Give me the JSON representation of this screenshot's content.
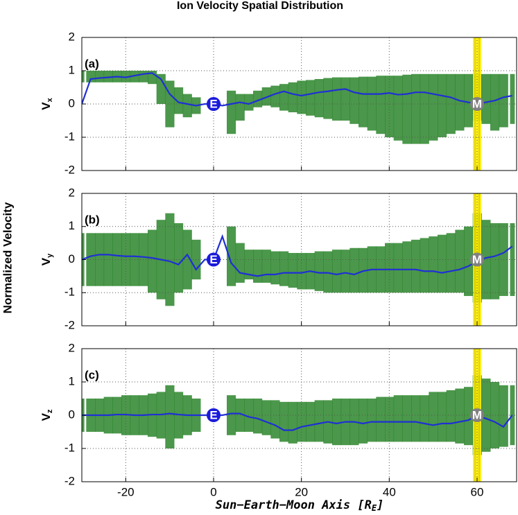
{
  "title": "Ion Velocity Spatial Distribution",
  "ylabel": "Normalized Velocity",
  "xlabel": {
    "text": "Sun−Earth−Moon Axis [R",
    "sub": "E",
    "end": "]"
  },
  "chart_data": [
    {
      "type": "line",
      "panel_label": "(a)",
      "ylabel": "V",
      "ylabel_sub": "x",
      "xlim": [
        -30,
        69
      ],
      "ylim": [
        -2,
        2
      ],
      "xticks": [
        -20,
        0,
        20,
        40,
        60
      ],
      "yticks": [
        -2,
        -1,
        0,
        1,
        2
      ],
      "grid": true,
      "show_xtick_labels": false,
      "x": [
        -30,
        -28,
        -26,
        -24,
        -22,
        -20,
        -18,
        -16,
        -14,
        -12,
        -10,
        -8,
        -6,
        -4,
        -2,
        0,
        2,
        4,
        6,
        8,
        10,
        12,
        14,
        16,
        18,
        20,
        22,
        24,
        26,
        28,
        30,
        32,
        34,
        36,
        38,
        40,
        42,
        44,
        46,
        48,
        50,
        52,
        54,
        56,
        58,
        60,
        62,
        64,
        66,
        68
      ],
      "series": [
        {
          "color": "#1f2fd6",
          "values": [
            0,
            0.75,
            0.78,
            0.8,
            0.82,
            0.8,
            0.85,
            0.9,
            0.93,
            0.75,
            0.3,
            0.05,
            0,
            -0.05,
            0,
            0,
            -0.05,
            0,
            0.05,
            0,
            0.1,
            0.2,
            0.3,
            0.38,
            0.3,
            0.25,
            0.3,
            0.35,
            0.38,
            0.42,
            0.45,
            0.35,
            0.3,
            0.3,
            0.3,
            0.33,
            0.28,
            0.3,
            0.35,
            0.35,
            0.3,
            0.25,
            0.2,
            0.1,
            0.05,
            0,
            0.05,
            0.1,
            0.2,
            0.25
          ]
        }
      ],
      "band": {
        "color": "#1e7d1e",
        "upper": [
          1.0,
          1.0,
          1.0,
          1.0,
          1.0,
          1.0,
          1.0,
          1.0,
          1.0,
          0.9,
          0.7,
          0.5,
          0.3,
          0.2,
          null,
          null,
          null,
          0.4,
          0.3,
          0.3,
          0.4,
          0.5,
          0.55,
          0.6,
          0.65,
          0.7,
          0.72,
          0.75,
          0.78,
          0.8,
          0.8,
          0.8,
          0.82,
          0.82,
          0.85,
          0.85,
          0.85,
          0.88,
          0.9,
          0.9,
          0.9,
          0.9,
          0.9,
          0.9,
          0.9,
          0.9,
          0.9,
          0.9,
          0.9,
          0.9
        ],
        "lower": [
          0.65,
          0.65,
          0.65,
          0.65,
          0.65,
          0.65,
          0.65,
          0.65,
          0.6,
          0.0,
          -0.7,
          -0.3,
          -0.4,
          -0.3,
          null,
          null,
          null,
          -0.9,
          -0.5,
          -0.2,
          -0.1,
          -0.05,
          -0.1,
          -0.2,
          -0.25,
          -0.3,
          -0.35,
          -0.4,
          -0.45,
          -0.5,
          -0.5,
          -0.6,
          -0.7,
          -0.8,
          -0.9,
          -1.0,
          -1.1,
          -1.2,
          -1.2,
          -1.2,
          -1.1,
          -1.0,
          -0.9,
          -0.8,
          -0.7,
          -0.5,
          -0.6,
          -0.8,
          -0.7,
          -0.6
        ]
      },
      "highlight": {
        "x": 60,
        "color": "#ffee00"
      },
      "markers": [
        {
          "label": "E",
          "x": 0,
          "y": 0,
          "color": "#1a1adb"
        },
        {
          "label": "M",
          "x": 60,
          "y": 0,
          "color": "#808080"
        }
      ]
    },
    {
      "type": "line",
      "panel_label": "(b)",
      "ylabel": "V",
      "ylabel_sub": "y",
      "xlim": [
        -30,
        69
      ],
      "ylim": [
        -2,
        2
      ],
      "xticks": [
        -20,
        0,
        20,
        40,
        60
      ],
      "yticks": [
        -2,
        -1,
        0,
        1,
        2
      ],
      "grid": true,
      "show_xtick_labels": false,
      "x": [
        -30,
        -28,
        -26,
        -24,
        -22,
        -20,
        -18,
        -16,
        -14,
        -12,
        -10,
        -8,
        -6,
        -4,
        -2,
        0,
        2,
        4,
        6,
        8,
        10,
        12,
        14,
        16,
        18,
        20,
        22,
        24,
        26,
        28,
        30,
        32,
        34,
        36,
        38,
        40,
        42,
        44,
        46,
        48,
        50,
        52,
        54,
        56,
        58,
        60,
        62,
        64,
        66,
        68
      ],
      "series": [
        {
          "color": "#1f2fd6",
          "values": [
            0,
            0.1,
            0.15,
            0.15,
            0.12,
            0.1,
            0.1,
            0.08,
            0.05,
            0,
            -0.05,
            -0.15,
            0.15,
            -0.3,
            0,
            0,
            0.7,
            -0.1,
            -0.4,
            -0.45,
            -0.5,
            -0.45,
            -0.45,
            -0.4,
            -0.4,
            -0.4,
            -0.35,
            -0.4,
            -0.4,
            -0.45,
            -0.4,
            -0.45,
            -0.35,
            -0.3,
            -0.3,
            -0.3,
            -0.3,
            -0.3,
            -0.3,
            -0.35,
            -0.35,
            -0.4,
            -0.35,
            -0.3,
            -0.2,
            -0.05,
            0.05,
            0.1,
            0.2,
            0.4
          ]
        }
      ],
      "band": {
        "color": "#1e7d1e",
        "upper": [
          0.8,
          0.8,
          0.8,
          0.8,
          0.8,
          0.8,
          0.8,
          0.8,
          0.9,
          1.2,
          1.4,
          1.1,
          0.9,
          0.6,
          null,
          null,
          null,
          1.0,
          0.5,
          0.3,
          0.3,
          0.3,
          0.25,
          0.25,
          0.2,
          0.2,
          0.2,
          0.25,
          0.25,
          0.3,
          0.3,
          0.35,
          0.35,
          0.4,
          0.4,
          0.5,
          0.5,
          0.55,
          0.6,
          0.65,
          0.7,
          0.75,
          0.8,
          0.9,
          1.0,
          1.4,
          1.2,
          1.1,
          1.1,
          1.1
        ],
        "lower": [
          -0.8,
          -0.8,
          -0.8,
          -0.8,
          -0.8,
          -0.8,
          -0.8,
          -0.8,
          -1.0,
          -1.2,
          -1.4,
          -1.0,
          -0.9,
          -0.6,
          null,
          null,
          null,
          -0.8,
          -0.7,
          -0.6,
          -0.7,
          -0.7,
          -0.75,
          -0.8,
          -0.85,
          -0.9,
          -0.9,
          -0.95,
          -1.0,
          -1.0,
          -1.0,
          -1.0,
          -1.0,
          -1.0,
          -1.0,
          -1.0,
          -1.0,
          -1.0,
          -1.0,
          -1.0,
          -1.0,
          -1.0,
          -1.0,
          -1.0,
          -1.1,
          -1.3,
          -1.2,
          -1.2,
          -1.1,
          -1.1
        ]
      },
      "highlight": {
        "x": 60,
        "color": "#ffee00"
      },
      "markers": [
        {
          "label": "E",
          "x": 0,
          "y": 0,
          "color": "#1a1adb"
        },
        {
          "label": "M",
          "x": 60,
          "y": 0,
          "color": "#808080"
        }
      ]
    },
    {
      "type": "line",
      "panel_label": "(c)",
      "ylabel": "V",
      "ylabel_sub": "z",
      "xlim": [
        -30,
        69
      ],
      "ylim": [
        -2,
        2
      ],
      "xticks": [
        -20,
        0,
        20,
        40,
        60
      ],
      "yticks": [
        -2,
        -1,
        0,
        1,
        2
      ],
      "grid": true,
      "show_xtick_labels": true,
      "x": [
        -30,
        -28,
        -26,
        -24,
        -22,
        -20,
        -18,
        -16,
        -14,
        -12,
        -10,
        -8,
        -6,
        -4,
        -2,
        0,
        2,
        4,
        6,
        8,
        10,
        12,
        14,
        16,
        18,
        20,
        22,
        24,
        26,
        28,
        30,
        32,
        34,
        36,
        38,
        40,
        42,
        44,
        46,
        48,
        50,
        52,
        54,
        56,
        58,
        60,
        62,
        64,
        66,
        68
      ],
      "series": [
        {
          "color": "#1f2fd6",
          "values": [
            0,
            0,
            0,
            0,
            0.02,
            0.02,
            0,
            0,
            0.02,
            0.02,
            0.05,
            0.02,
            0,
            0,
            0,
            0,
            0,
            0.05,
            0.05,
            -0.05,
            -0.1,
            -0.2,
            -0.3,
            -0.45,
            -0.45,
            -0.35,
            -0.3,
            -0.25,
            -0.2,
            -0.25,
            -0.2,
            -0.2,
            -0.25,
            -0.2,
            -0.2,
            -0.2,
            -0.2,
            -0.2,
            -0.2,
            -0.25,
            -0.3,
            -0.25,
            -0.25,
            -0.2,
            -0.15,
            0,
            -0.1,
            -0.2,
            -0.35,
            0
          ]
        }
      ],
      "band": {
        "color": "#1e7d1e",
        "upper": [
          0.5,
          0.5,
          0.5,
          0.55,
          0.55,
          0.6,
          0.6,
          0.6,
          0.65,
          0.7,
          0.9,
          0.7,
          0.6,
          0.5,
          null,
          null,
          null,
          0.6,
          0.5,
          0.5,
          0.5,
          0.45,
          0.45,
          0.4,
          0.4,
          0.4,
          0.4,
          0.45,
          0.45,
          0.5,
          0.5,
          0.5,
          0.5,
          0.5,
          0.55,
          0.55,
          0.6,
          0.6,
          0.6,
          0.6,
          0.7,
          0.7,
          0.75,
          0.8,
          0.85,
          1.2,
          1.1,
          1.0,
          0.9,
          0.9
        ],
        "lower": [
          -0.5,
          -0.5,
          -0.5,
          -0.55,
          -0.55,
          -0.6,
          -0.6,
          -0.6,
          -0.65,
          -0.7,
          -1.0,
          -0.7,
          -0.6,
          -0.5,
          null,
          null,
          null,
          -0.6,
          -0.5,
          -0.5,
          -0.55,
          -0.6,
          -0.7,
          -0.8,
          -0.85,
          -0.8,
          -0.8,
          -0.8,
          -0.85,
          -0.9,
          -0.9,
          -0.9,
          -0.85,
          -0.8,
          -0.8,
          -0.8,
          -0.8,
          -0.8,
          -0.8,
          -0.8,
          -0.8,
          -0.8,
          -0.8,
          -0.85,
          -0.9,
          -1.2,
          -1.1,
          -1.0,
          -0.95,
          -0.9
        ]
      },
      "highlight": {
        "x": 60,
        "color": "#ffee00"
      },
      "markers": [
        {
          "label": "E",
          "x": 0,
          "y": 0,
          "color": "#1a1adb"
        },
        {
          "label": "M",
          "x": 60,
          "y": 0,
          "color": "#808080"
        }
      ]
    }
  ]
}
